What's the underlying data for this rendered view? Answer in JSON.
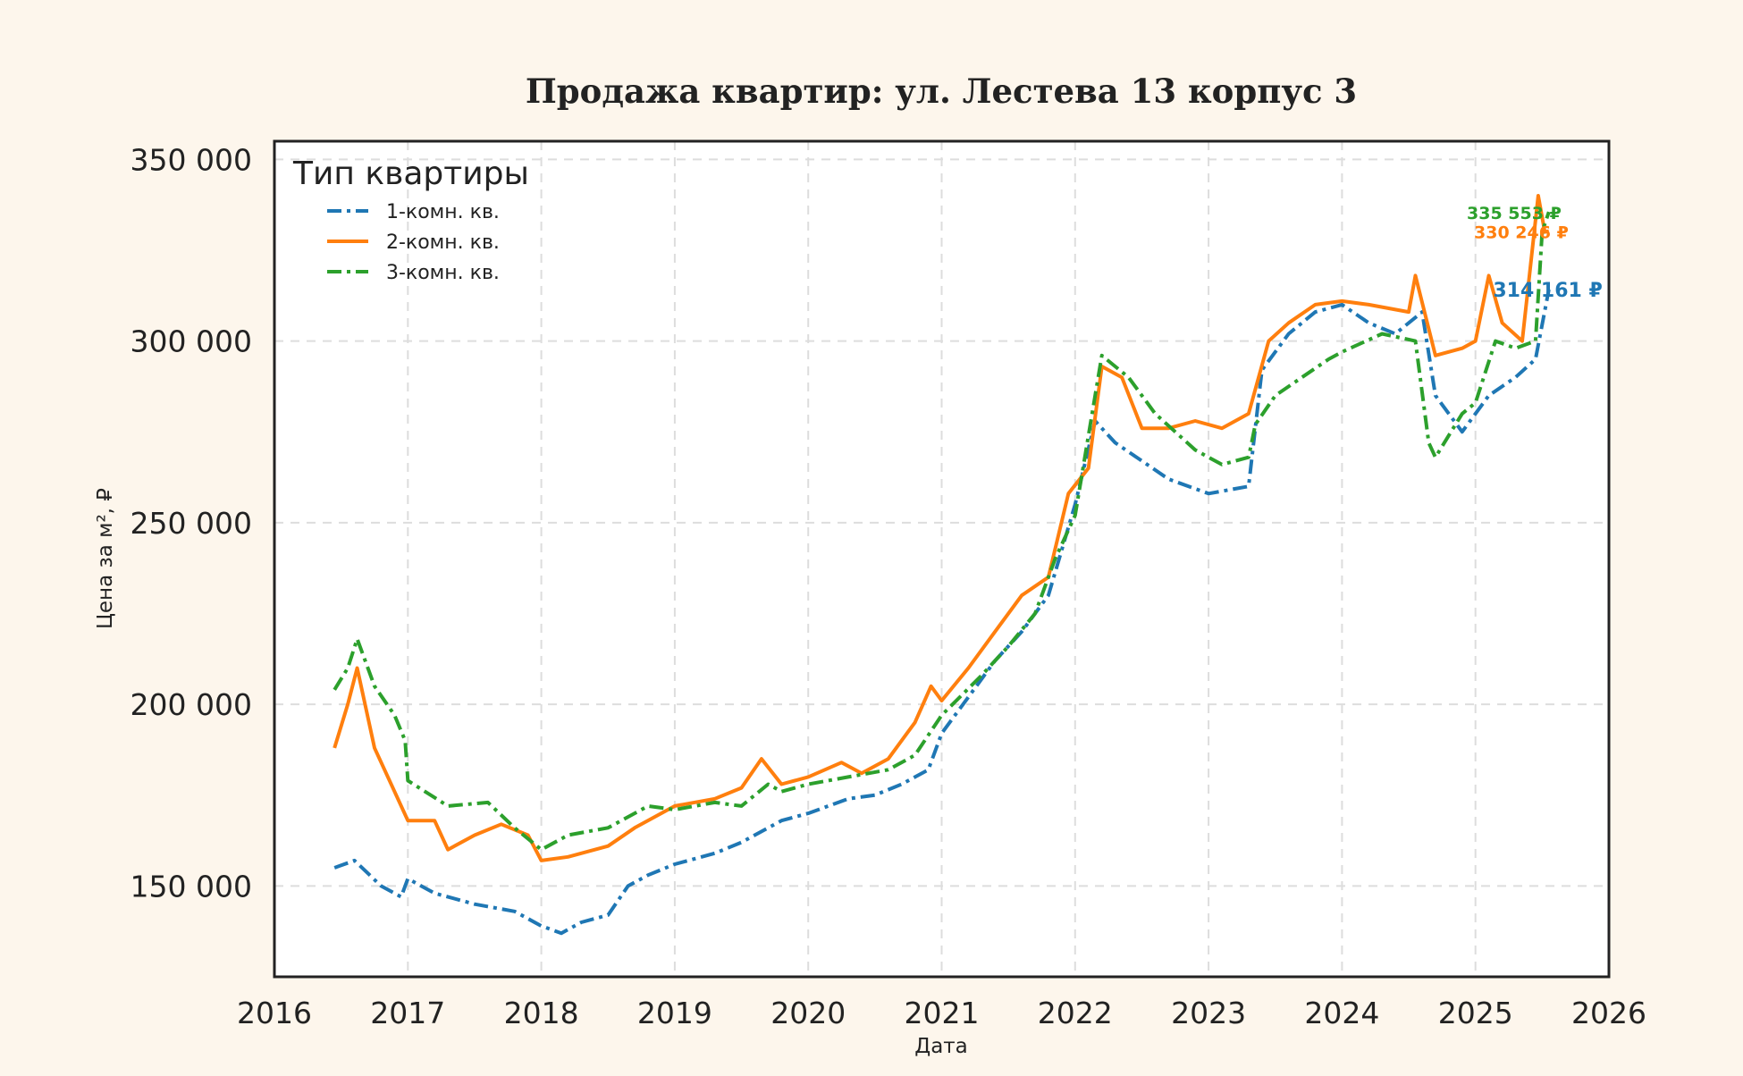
{
  "chart_data": {
    "type": "line",
    "title": "Продажа квартир: ул. Лестева 13 корпус 3",
    "xlabel": "Дата",
    "ylabel": "Цена за м², ₽",
    "xlim": [
      2016,
      2026
    ],
    "ylim": [
      125000,
      355000
    ],
    "x_ticks": [
      "2016",
      "2017",
      "2018",
      "2019",
      "2020",
      "2021",
      "2022",
      "2023",
      "2024",
      "2025",
      "2026"
    ],
    "y_ticks": [
      "150 000",
      "200 000",
      "250 000",
      "300 000",
      "350 000"
    ],
    "grid": true,
    "legend_title": "Тип квартиры",
    "legend_position": "top-left",
    "series": [
      {
        "name": "1-комн. кв.",
        "color": "#1f77b4",
        "style": "dash-dot",
        "end_label": "314 161 ₽",
        "x": [
          2016.45,
          2016.6,
          2016.8,
          2016.95,
          2017.0,
          2017.2,
          2017.5,
          2017.8,
          2018.0,
          2018.15,
          2018.3,
          2018.5,
          2018.65,
          2018.8,
          2019.0,
          2019.3,
          2019.5,
          2019.8,
          2020.0,
          2020.3,
          2020.5,
          2020.7,
          2020.9,
          2021.0,
          2021.2,
          2021.4,
          2021.6,
          2021.8,
          2022.0,
          2022.15,
          2022.3,
          2022.5,
          2022.7,
          2023.0,
          2023.3,
          2023.4,
          2023.6,
          2023.8,
          2024.0,
          2024.2,
          2024.4,
          2024.6,
          2024.7,
          2024.9,
          2025.1,
          2025.3,
          2025.45,
          2025.55
        ],
        "y": [
          155000,
          157000,
          150000,
          147000,
          152000,
          148000,
          145000,
          143000,
          139000,
          137000,
          140000,
          142000,
          150000,
          153000,
          156000,
          159000,
          162000,
          168000,
          170000,
          174000,
          175000,
          178000,
          182000,
          192000,
          202000,
          212000,
          220000,
          230000,
          255000,
          278000,
          272000,
          267000,
          262000,
          258000,
          260000,
          292000,
          302000,
          308000,
          310000,
          305000,
          302000,
          308000,
          285000,
          275000,
          285000,
          290000,
          295000,
          314161
        ]
      },
      {
        "name": "2-комн. кв.",
        "color": "#ff7f0e",
        "style": "solid",
        "end_label": "330 246 ₽",
        "x": [
          2016.45,
          2016.55,
          2016.62,
          2016.75,
          2016.9,
          2017.0,
          2017.2,
          2017.3,
          2017.5,
          2017.7,
          2017.9,
          2018.0,
          2018.2,
          2018.5,
          2018.7,
          2019.0,
          2019.3,
          2019.5,
          2019.65,
          2019.8,
          2020.0,
          2020.25,
          2020.4,
          2020.6,
          2020.8,
          2020.92,
          2021.0,
          2021.2,
          2021.4,
          2021.6,
          2021.8,
          2021.95,
          2022.1,
          2022.2,
          2022.35,
          2022.5,
          2022.7,
          2022.9,
          2023.1,
          2023.3,
          2023.45,
          2023.6,
          2023.8,
          2024.0,
          2024.2,
          2024.5,
          2024.55,
          2024.7,
          2024.9,
          2025.0,
          2025.1,
          2025.2,
          2025.35,
          2025.47,
          2025.52,
          2025.55
        ],
        "y": [
          188000,
          200000,
          210000,
          188000,
          176000,
          168000,
          168000,
          160000,
          164000,
          167000,
          164000,
          157000,
          158000,
          161000,
          166000,
          172000,
          174000,
          177000,
          185000,
          178000,
          180000,
          184000,
          181000,
          185000,
          195000,
          205000,
          201000,
          210000,
          220000,
          230000,
          235000,
          258000,
          265000,
          293000,
          290000,
          276000,
          276000,
          278000,
          276000,
          280000,
          300000,
          305000,
          310000,
          311000,
          310000,
          308000,
          318000,
          296000,
          298000,
          300000,
          318000,
          305000,
          300000,
          340000,
          330000,
          330246
        ]
      },
      {
        "name": "3-комн. кв.",
        "color": "#2ca02c",
        "style": "dash-dot",
        "end_label": "335 553 ₽",
        "x": [
          2016.45,
          2016.55,
          2016.62,
          2016.75,
          2016.9,
          2016.98,
          2017.0,
          2017.3,
          2017.6,
          2017.8,
          2018.0,
          2018.2,
          2018.5,
          2018.8,
          2019.0,
          2019.3,
          2019.5,
          2019.7,
          2019.8,
          2020.0,
          2020.3,
          2020.6,
          2020.8,
          2021.0,
          2021.3,
          2021.5,
          2021.7,
          2021.85,
          2022.0,
          2022.2,
          2022.4,
          2022.6,
          2022.9,
          2023.1,
          2023.3,
          2023.35,
          2023.5,
          2023.7,
          2023.9,
          2024.0,
          2024.3,
          2024.55,
          2024.65,
          2024.7,
          2024.9,
          2025.0,
          2025.15,
          2025.3,
          2025.45,
          2025.5,
          2025.55
        ],
        "y": [
          204000,
          210000,
          218000,
          205000,
          197000,
          190000,
          179000,
          172000,
          173000,
          166000,
          160000,
          164000,
          166000,
          172000,
          171000,
          173000,
          172000,
          178000,
          176000,
          178000,
          180000,
          182000,
          186000,
          197000,
          208000,
          216000,
          225000,
          240000,
          252000,
          296000,
          290000,
          280000,
          270000,
          266000,
          268000,
          277000,
          285000,
          290000,
          295000,
          297000,
          302000,
          300000,
          272000,
          268000,
          280000,
          283000,
          300000,
          298000,
          300000,
          330000,
          335553
        ]
      }
    ]
  }
}
